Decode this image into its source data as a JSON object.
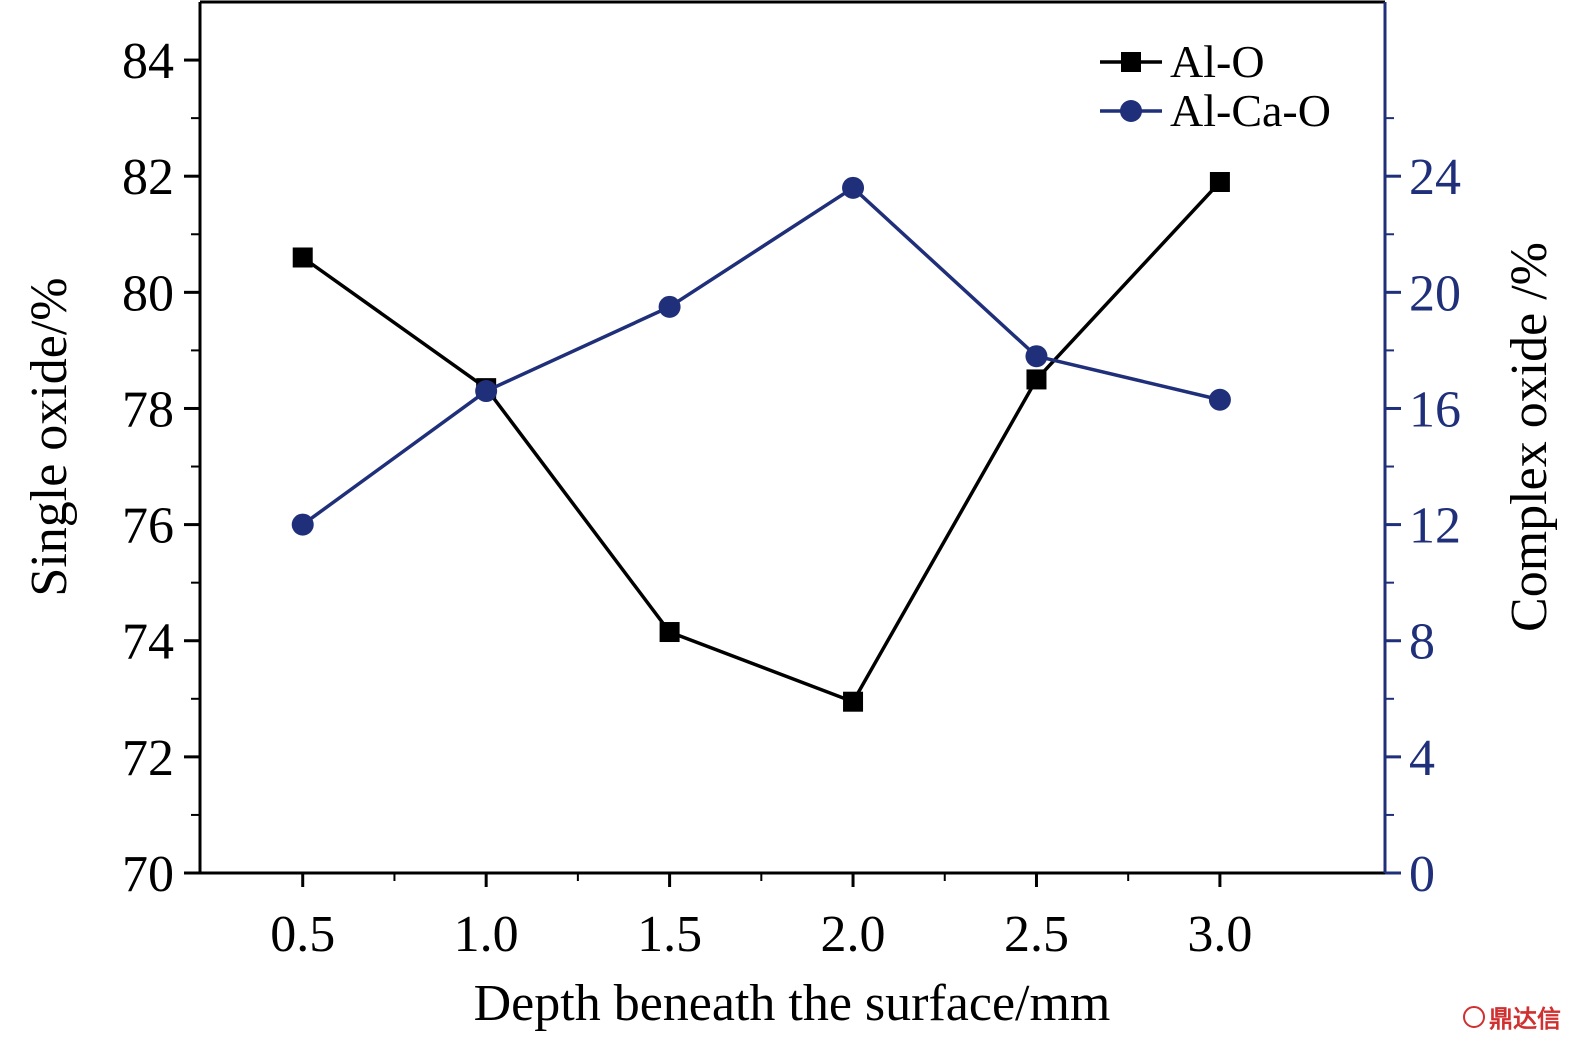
{
  "chart_data": {
    "type": "line",
    "x": [
      0.5,
      1.0,
      1.5,
      2.0,
      2.5,
      3.0
    ],
    "x_tick_labels": [
      "0.5",
      "1.0",
      "1.5",
      "2.0",
      "2.5",
      "3.0"
    ],
    "xlabel": "Depth beneath the surface/mm",
    "xlim": [
      0.22,
      3.45
    ],
    "y_left": {
      "label": "Single oxide/%",
      "lim": [
        70,
        85
      ],
      "ticks": [
        70,
        72,
        74,
        76,
        78,
        80,
        82,
        84
      ],
      "color": "#000000"
    },
    "y_right": {
      "label": "Complex oxide /%",
      "lim": [
        0,
        30
      ],
      "ticks": [
        0,
        4,
        8,
        12,
        16,
        20,
        24
      ],
      "color": "#1f2f7a"
    },
    "series": [
      {
        "name": "Al-O",
        "axis": "left",
        "marker": "square",
        "color": "#000000",
        "values": [
          80.6,
          78.35,
          74.15,
          72.95,
          78.5,
          81.9
        ]
      },
      {
        "name": "Al-Ca-O",
        "axis": "right",
        "marker": "circle",
        "color": "#1f2f7a",
        "values": [
          12.0,
          16.6,
          19.5,
          23.6,
          17.8,
          16.3
        ]
      }
    ],
    "legend_position": "top-right",
    "grid": false
  },
  "watermark": {
    "text": "鼎达信"
  }
}
